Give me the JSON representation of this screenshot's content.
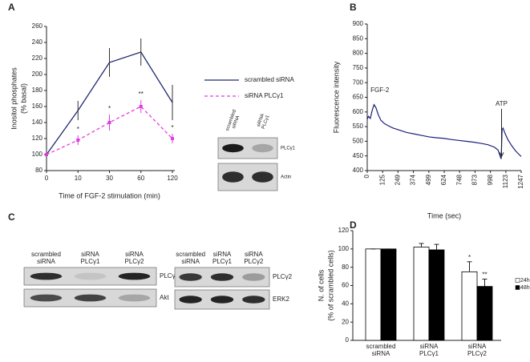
{
  "chart_data": [
    {
      "type": "line",
      "panel": "A",
      "ylabel": [
        "Inositol phosphates",
        "(% basal)"
      ],
      "xlabel": "Time of FGF-2 stimulation (min)",
      "categories": [
        "0",
        "10",
        "30",
        "60",
        "120"
      ],
      "ylim": [
        80,
        260
      ],
      "yticks": [
        80,
        100,
        120,
        140,
        160,
        180,
        200,
        220,
        240,
        260
      ],
      "series": [
        {
          "name": "scrambled siRNA",
          "color": "#1f2a6e",
          "dashed": false,
          "values": [
            100,
            155,
            215,
            228,
            165
          ],
          "errors": [
            2,
            12,
            18,
            17,
            22
          ]
        },
        {
          "name": "siRNA PLCγ1",
          "color": "#e03ce0",
          "dashed": true,
          "values": [
            100,
            118,
            140,
            160,
            120
          ],
          "errors": [
            2,
            6,
            10,
            8,
            6
          ]
        }
      ],
      "annotations": [
        {
          "text": "*",
          "category": "10"
        },
        {
          "text": "*",
          "category": "30"
        },
        {
          "text": "**",
          "category": "60"
        },
        {
          "text": "*",
          "category": "120"
        }
      ]
    },
    {
      "type": "trace",
      "panel": "B",
      "ylabel": "Fluorescence intensity",
      "xlabel": "Time (sec)",
      "xlim": [
        0,
        1247
      ],
      "xticks": [
        0,
        125,
        249,
        374,
        499,
        624,
        748,
        873,
        998,
        1123,
        1247
      ],
      "ylim": [
        400,
        900
      ],
      "yticks": [
        400,
        450,
        500,
        550,
        600,
        650,
        700,
        750,
        800,
        850,
        900
      ],
      "x": [
        0,
        10,
        25,
        40,
        55,
        70,
        90,
        110,
        140,
        175,
        210,
        260,
        320,
        380,
        440,
        500,
        560,
        620,
        680,
        740,
        800,
        860,
        920,
        980,
        1030,
        1060,
        1080,
        1085,
        1092,
        1100,
        1115,
        1140,
        1170,
        1200,
        1230,
        1247
      ],
      "series": [
        {
          "color": "#1a1f7a",
          "values": [
            575,
            585,
            578,
            605,
            625,
            615,
            590,
            572,
            560,
            552,
            545,
            538,
            530,
            525,
            520,
            515,
            512,
            510,
            506,
            503,
            500,
            497,
            493,
            488,
            480,
            470,
            445,
            440,
            540,
            545,
            528,
            505,
            485,
            468,
            455,
            448
          ]
        }
      ],
      "annotations": [
        {
          "text": "FGF-2",
          "x": 40
        },
        {
          "text": "ATP",
          "x": 1088
        }
      ]
    },
    {
      "type": "bar",
      "panel": "D",
      "ylabel": [
        "N. of cells",
        "(% of scrambled cells)"
      ],
      "categories": [
        "scrambled siRNA",
        "siRNA PLCγ1",
        "siRNA PLCγ2"
      ],
      "ylim": [
        0,
        120
      ],
      "yticks": [
        0,
        20,
        40,
        60,
        80,
        100,
        120
      ],
      "series": [
        {
          "name": "24h",
          "color": "#ffffff",
          "values": [
            100,
            102,
            75
          ],
          "errors": [
            0,
            4,
            11
          ]
        },
        {
          "name": "48h",
          "color": "#000000",
          "values": [
            100,
            99,
            59
          ],
          "errors": [
            0,
            6,
            8
          ]
        }
      ],
      "annotations": [
        {
          "text": "*",
          "category": "siRNA PLCγ2",
          "series": "24h"
        },
        {
          "text": "**",
          "category": "siRNA PLCγ2",
          "series": "48h"
        }
      ]
    }
  ],
  "blots": [
    {
      "lanes": [
        "scrambled siRNA",
        "siRNA PLCγ1"
      ],
      "rows": [
        "PLCγ1",
        "Actin"
      ]
    },
    {
      "panel": "C",
      "lanes": [
        "scrambled siRNA",
        "siRNA PLCγ1",
        "siRNA PLCγ2"
      ],
      "rows": [
        "PLCγ1",
        "Akt"
      ]
    },
    {
      "lanes": [
        "scrambled siRNA",
        "siRNA PLCγ1",
        "siRNA PLCγ2"
      ],
      "rows": [
        "PLCγ2",
        "ERK2"
      ]
    }
  ]
}
